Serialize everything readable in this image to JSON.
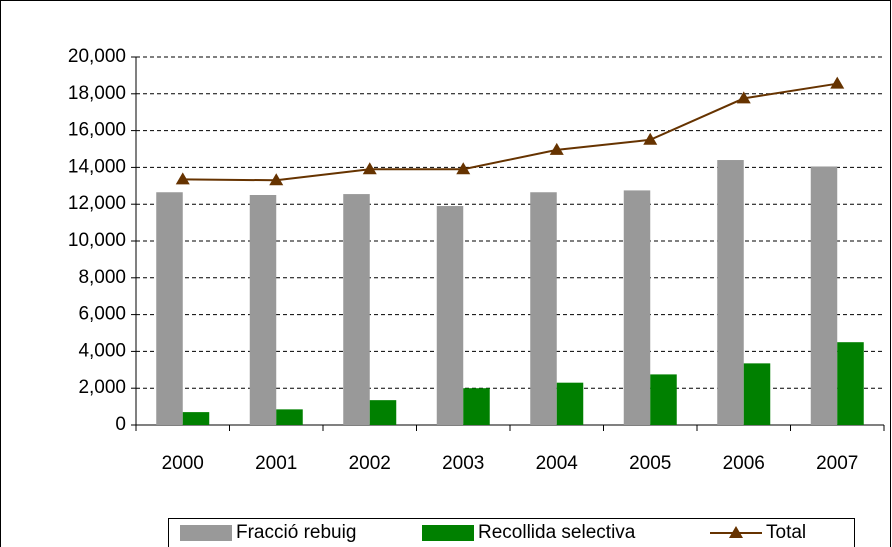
{
  "chart_data": {
    "type": "bar",
    "categories": [
      "2000",
      "2001",
      "2002",
      "2003",
      "2004",
      "2005",
      "2006",
      "2007"
    ],
    "series": [
      {
        "name": "Fracció rebuig",
        "type": "bar",
        "color": "#999999",
        "values": [
          12650,
          12500,
          12550,
          11900,
          12650,
          12750,
          14400,
          14050
        ]
      },
      {
        "name": "Recollida selectiva",
        "type": "bar",
        "color": "#008000",
        "values": [
          700,
          850,
          1350,
          2000,
          2300,
          2750,
          3350,
          4500
        ]
      },
      {
        "name": "Total",
        "type": "line",
        "color": "#663300",
        "values": [
          13350,
          13300,
          13900,
          13900,
          14950,
          15500,
          17750,
          18550
        ]
      }
    ],
    "ylim": [
      0,
      20000
    ],
    "yticks": [
      0,
      {
        "value": 2000,
        "label": "2,000"
      },
      {
        "value": 4000,
        "label": "4,000"
      },
      {
        "value": 6000,
        "label": "6,000"
      },
      {
        "value": 8000,
        "label": "8,000"
      },
      {
        "value": 10000,
        "label": "10,000"
      },
      {
        "value": 12000,
        "label": "12,000"
      },
      {
        "value": 14000,
        "label": "14,000"
      },
      {
        "value": 16000,
        "label": "16,000"
      },
      {
        "value": 18000,
        "label": "18,000"
      },
      {
        "value": 20000,
        "label": "20,000"
      }
    ],
    "grid": true,
    "legend": "bottom"
  }
}
